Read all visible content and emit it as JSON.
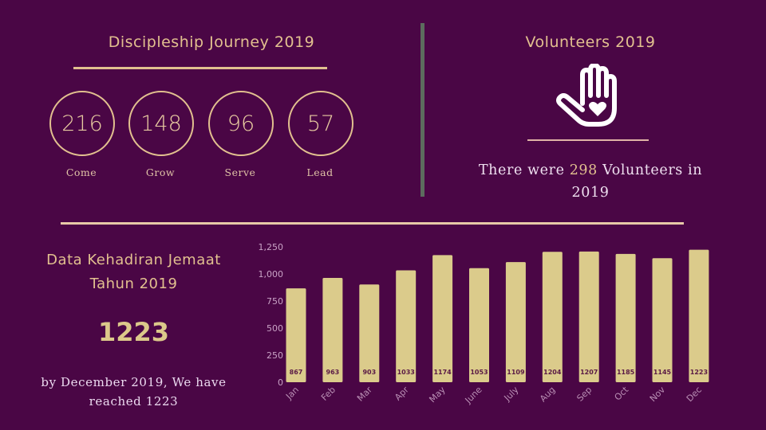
{
  "colors": {
    "background": "#4a0645",
    "accent": "#e2c08f",
    "bar": "#dbcb8b",
    "divider": "#5c6b5e"
  },
  "discipleship": {
    "title": "Discipleship Journey 2019",
    "stages": [
      {
        "value": "216",
        "label": "Come"
      },
      {
        "value": "148",
        "label": "Grow"
      },
      {
        "value": "96",
        "label": "Serve"
      },
      {
        "value": "57",
        "label": "Lead"
      }
    ]
  },
  "volunteers": {
    "title": "Volunteers 2019",
    "icon": "hand-heart-icon",
    "text_before": "There were ",
    "count": "298",
    "text_after": " Volunteers in 2019"
  },
  "attendance": {
    "title_line1": "Data Kehadiran Jemaat",
    "title_line2": "Tahun 2019",
    "total": "1223",
    "description": "by December 2019, We have reached 1223"
  },
  "chart_data": {
    "type": "bar",
    "title": "",
    "xlabel": "",
    "ylabel": "",
    "categories": [
      "Jan",
      "Feb",
      "Mar",
      "Apr",
      "May",
      "June",
      "July",
      "Aug",
      "Sep",
      "Oct",
      "Nov",
      "Dec"
    ],
    "values": [
      867,
      963,
      903,
      1033,
      1174,
      1053,
      1109,
      1204,
      1207,
      1185,
      1145,
      1223
    ],
    "value_labels": [
      "867",
      "963",
      "903",
      "1033",
      "1174",
      "1053",
      "1109",
      "1204",
      "1207",
      "1185",
      "1145",
      "1223"
    ],
    "ylim": [
      0,
      1250
    ],
    "yticks": [
      0,
      250,
      500,
      750,
      1000,
      1250
    ],
    "ytick_labels": [
      "0",
      "250",
      "500",
      "750",
      "1,000",
      "1,250"
    ],
    "grid": false,
    "legend": "none"
  }
}
